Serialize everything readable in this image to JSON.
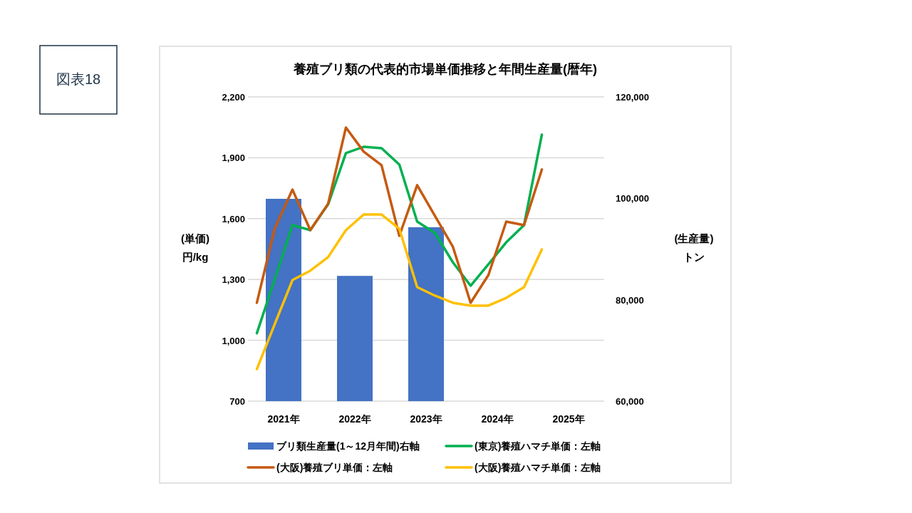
{
  "chart_data": {
    "type": "line",
    "title": "養殖ブリ類の代表的市場単価推移と年間生産量(暦年)",
    "ylabel": "(単価)\n円/kg",
    "y2label": "(生産量)\nトン",
    "annotations": [
      "図表18"
    ],
    "xlim": [
      2020.5,
      2025.5
    ],
    "xticks": [
      {
        "value": 2021,
        "label": "2021年"
      },
      {
        "value": 2022,
        "label": "2022年"
      },
      {
        "value": 2023,
        "label": "2023年"
      },
      {
        "value": 2024,
        "label": "2024年"
      },
      {
        "value": 2025,
        "label": "2025年"
      }
    ],
    "ylim": [
      700,
      2200
    ],
    "yticks": [
      700,
      {
        "value": 1000,
        "label": "1,000"
      },
      {
        "value": 1300,
        "label": "1,300"
      },
      {
        "value": 1600,
        "label": "1,600"
      },
      {
        "value": 1900,
        "label": "1,900"
      },
      {
        "value": 2200,
        "label": "2,200"
      }
    ],
    "y2lim": [
      60000,
      120000
    ],
    "y2ticks": [
      {
        "value": 60000,
        "label": "60,000"
      },
      {
        "value": 80000,
        "label": "80,000"
      },
      {
        "value": 100000,
        "label": "100,000"
      },
      {
        "value": 120000,
        "label": "120,000"
      }
    ],
    "grid": "y",
    "legend": "bottom",
    "series": [
      {
        "name": "ブリ類生産量(1～12月年間)右軸",
        "type": "bar",
        "axis": "y2",
        "color": "#4472c4",
        "x": [
          2021,
          2022,
          2023
        ],
        "values": [
          99900,
          84700,
          94300
        ]
      },
      {
        "name": "(東京)養殖ハマチ単価：左軸",
        "color": "#00b050",
        "x": [
          2020.625,
          2020.875,
          2021.125,
          2021.375,
          2021.625,
          2021.875,
          2022.125,
          2022.375,
          2022.625,
          2022.875,
          2023.125,
          2023.375,
          2023.625,
          2023.875,
          2024.125,
          2024.375,
          2024.625
        ],
        "values": [
          1035,
          1300,
          1568,
          1543,
          1670,
          1923,
          1954,
          1947,
          1866,
          1585,
          1529,
          1385,
          1269,
          1375,
          1483,
          1568,
          2014
        ]
      },
      {
        "name": "(大阪)養殖ブリ単価：左軸",
        "color": "#c55a11",
        "x": [
          2020.625,
          2020.875,
          2021.125,
          2021.375,
          2021.625,
          2021.875,
          2022.125,
          2022.375,
          2022.625,
          2022.875,
          2023.125,
          2023.375,
          2023.625,
          2023.875,
          2024.125,
          2024.375,
          2024.625
        ],
        "values": [
          1185,
          1550,
          1743,
          1543,
          1673,
          2049,
          1930,
          1863,
          1515,
          1765,
          1613,
          1462,
          1185,
          1322,
          1585,
          1568,
          1842
        ]
      },
      {
        "name": "(大阪)養殖ハマチ単価：左軸",
        "color": "#ffc000",
        "x": [
          2020.625,
          2020.875,
          2021.125,
          2021.375,
          2021.625,
          2021.875,
          2022.125,
          2022.375,
          2022.625,
          2022.875,
          2023.125,
          2023.375,
          2023.625,
          2023.875,
          2024.125,
          2024.375,
          2024.625
        ],
        "values": [
          858,
          1079,
          1297,
          1343,
          1410,
          1543,
          1620,
          1620,
          1550,
          1262,
          1220,
          1185,
          1171,
          1171,
          1209,
          1262,
          1448
        ]
      }
    ]
  }
}
